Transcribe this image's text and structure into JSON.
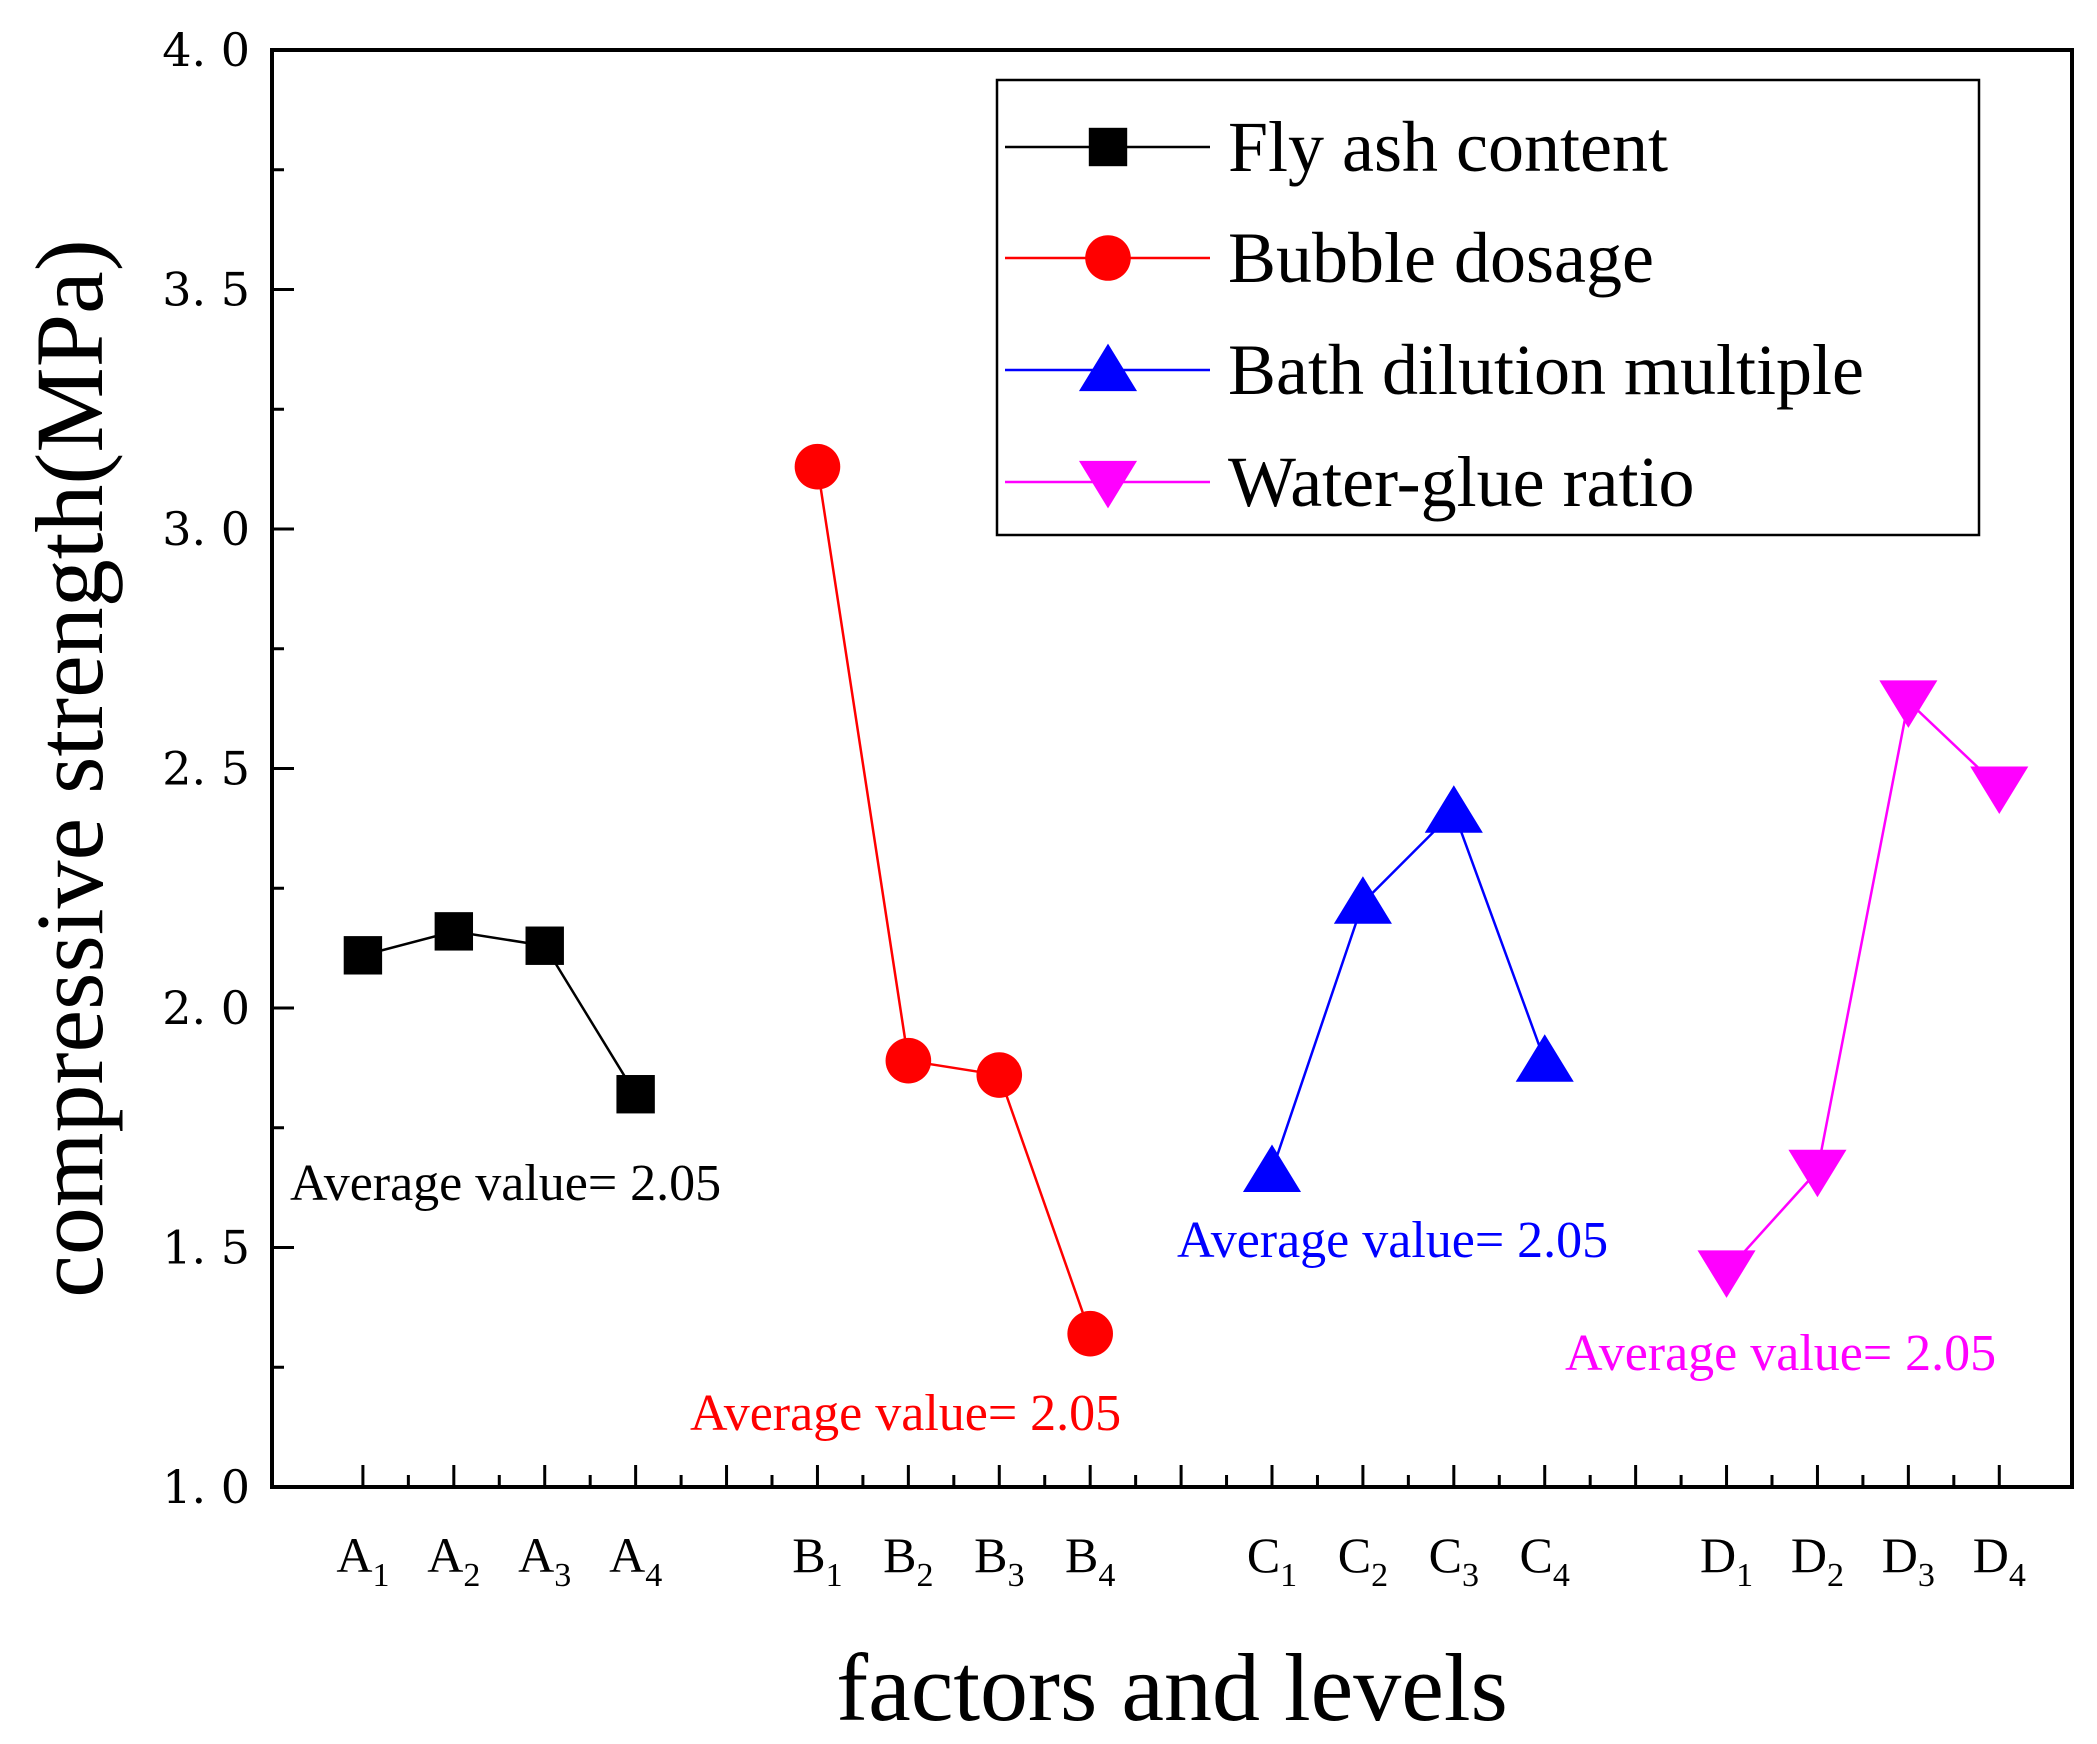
{
  "chart_data": {
    "type": "line",
    "title": "",
    "xlabel": "factors and levels",
    "ylabel": "compressive strength(MPa)",
    "ylim": [
      1.0,
      4.0
    ],
    "yticks": [
      "1. 0",
      "1. 5",
      "2. 0",
      "2. 5",
      "3. 0",
      "3. 5",
      "4. 0"
    ],
    "ytick_values": [
      1.0,
      1.5,
      2.0,
      2.5,
      3.0,
      3.5,
      4.0
    ],
    "categories": [
      {
        "main": "A",
        "sub": "1"
      },
      {
        "main": "A",
        "sub": "2"
      },
      {
        "main": "A",
        "sub": "3"
      },
      {
        "main": "A",
        "sub": "4"
      },
      {
        "main": "B",
        "sub": "1"
      },
      {
        "main": "B",
        "sub": "2"
      },
      {
        "main": "B",
        "sub": "3"
      },
      {
        "main": "B",
        "sub": "4"
      },
      {
        "main": "C",
        "sub": "1"
      },
      {
        "main": "C",
        "sub": "2"
      },
      {
        "main": "C",
        "sub": "3"
      },
      {
        "main": "C",
        "sub": "4"
      },
      {
        "main": "D",
        "sub": "1"
      },
      {
        "main": "D",
        "sub": "2"
      },
      {
        "main": "D",
        "sub": "3"
      },
      {
        "main": "D",
        "sub": "4"
      }
    ],
    "legend_position": "top-right",
    "series": [
      {
        "name": "Fly ash content",
        "color": "#000000",
        "marker": "square",
        "x": [
          1,
          2,
          3,
          4
        ],
        "values": [
          2.11,
          2.16,
          2.13,
          1.82
        ],
        "annotation": {
          "text": "Average value= 2.05",
          "color": "#000000"
        }
      },
      {
        "name": "Bubble dosage",
        "color": "#ff0000",
        "marker": "circle",
        "x": [
          6,
          7,
          8,
          9
        ],
        "values": [
          3.13,
          1.89,
          1.86,
          1.32
        ],
        "annotation": {
          "text": "Average value= 2.05",
          "color": "#ff0000"
        }
      },
      {
        "name": "Bath dilution multiple",
        "color": "#0000ff",
        "marker": "triangle-up",
        "x": [
          11,
          12,
          13,
          14
        ],
        "values": [
          1.66,
          2.22,
          2.41,
          1.89
        ],
        "annotation": {
          "text": "Average value= 2.05",
          "color": "#0000ff"
        }
      },
      {
        "name": "Water-glue ratio",
        "color": "#ff00ff",
        "marker": "triangle-down",
        "x": [
          16,
          17,
          18,
          19
        ],
        "values": [
          1.45,
          1.66,
          2.64,
          2.46
        ],
        "annotation": {
          "text": "Average value= 2.05",
          "color": "#ff00ff"
        }
      }
    ]
  }
}
